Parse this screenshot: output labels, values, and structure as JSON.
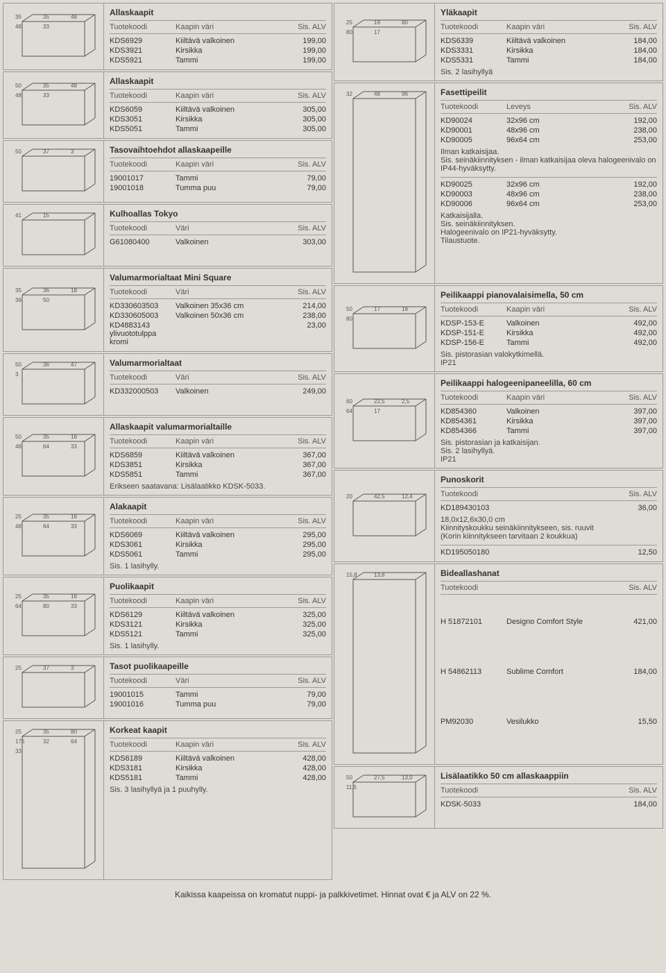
{
  "colors": {
    "background": "#dfdcd6",
    "border": "#999999",
    "text": "#333333",
    "text_muted": "#555555"
  },
  "typography": {
    "body_fontsize": 11,
    "title_fontsize": 12,
    "footer_fontsize": 12
  },
  "left_sections": [
    {
      "title": "Allaskaapit",
      "headers": [
        "Tuotekoodi",
        "Kaapin väri",
        "Sis. ALV"
      ],
      "rows": [
        [
          "KDS6929",
          "Kiiltävä valkoinen",
          "199,00"
        ],
        [
          "KDS3921",
          "Kirsikka",
          "199,00"
        ],
        [
          "KDS5921",
          "Tammi",
          "199,00"
        ]
      ],
      "dims": [
        "35",
        "35",
        "48",
        "48",
        "33"
      ]
    },
    {
      "title": "Allaskaapit",
      "headers": [
        "Tuotekoodi",
        "Kaapin väri",
        "Sis. ALV"
      ],
      "rows": [
        [
          "KDS6059",
          "Kiiltävä valkoinen",
          "305,00"
        ],
        [
          "KDS3051",
          "Kirsikka",
          "305,00"
        ],
        [
          "KDS5051",
          "Tammi",
          "305,00"
        ]
      ],
      "dims": [
        "50",
        "35",
        "48",
        "48",
        "33"
      ]
    },
    {
      "title": "Tasovaihtoehdot allaskaapeille",
      "headers": [
        "Tuotekoodi",
        "Kaapin väri",
        "Sis. ALV"
      ],
      "rows": [
        [
          "19001017",
          "Tammi",
          "79,00"
        ],
        [
          "19001018",
          "Tumma puu",
          "79,00"
        ]
      ],
      "dims": [
        "50",
        "37",
        "3"
      ]
    },
    {
      "title": "Kulhoallas Tokyo",
      "headers": [
        "Tuotekoodi",
        "Väri",
        "Sis. ALV"
      ],
      "rows": [
        [
          "G61080400",
          "Valkoinen",
          "303,00"
        ]
      ],
      "dims": [
        "41",
        "15"
      ]
    },
    {
      "title": "Valumarmorialtaat Mini Square",
      "headers": [
        "Tuotekoodi",
        "Väri",
        "Sis. ALV"
      ],
      "rows": [
        [
          "KD330603503",
          "Valkoinen 35x36 cm",
          "214,00"
        ],
        [
          "KD330605003",
          "Valkoinen 50x36 cm",
          "238,00"
        ],
        [
          "KD4883143 ylivuototulppa kromi",
          "",
          "23,00"
        ]
      ],
      "dims": [
        "35",
        "36",
        "18",
        "36",
        "50"
      ]
    },
    {
      "title": "Valumarmorialtaat",
      "headers": [
        "Tuotekoodi",
        "Väri",
        "Sis. ALV"
      ],
      "rows": [
        [
          "KD332000503",
          "Valkoinen",
          "249,00"
        ]
      ],
      "dims": [
        "50",
        "36",
        "47",
        "3"
      ]
    },
    {
      "title": "Allaskaapit valumarmorialtaille",
      "headers": [
        "Tuotekoodi",
        "Kaapin väri",
        "Sis. ALV"
      ],
      "rows": [
        [
          "KDS6859",
          "Kiiltävä valkoinen",
          "367,00"
        ],
        [
          "KDS3851",
          "Kirsikka",
          "367,00"
        ],
        [
          "KDS5851",
          "Tammi",
          "367,00"
        ]
      ],
      "note": "Erikseen saatavana: Lisälaatikko KDSK-5033.",
      "dims": [
        "50",
        "35",
        "16",
        "48",
        "64",
        "33"
      ]
    },
    {
      "title": "Alakaapit",
      "headers": [
        "Tuotekoodi",
        "Kaapin väri",
        "Sis. ALV"
      ],
      "rows": [
        [
          "KDS6069",
          "Kiiltävä valkoinen",
          "295,00"
        ],
        [
          "KDS3061",
          "Kirsikka",
          "295,00"
        ],
        [
          "KDS5061",
          "Tammi",
          "295,00"
        ]
      ],
      "note": "Sis. 1 lasihylly.",
      "dims": [
        "25",
        "35",
        "16",
        "48",
        "64",
        "33"
      ]
    },
    {
      "title": "Puolikaapit",
      "headers": [
        "Tuotekoodi",
        "Kaapin väri",
        "Sis. ALV"
      ],
      "rows": [
        [
          "KDS6129",
          "Kiiltävä valkoinen",
          "325,00"
        ],
        [
          "KDS3121",
          "Kirsikka",
          "325,00"
        ],
        [
          "KDS5121",
          "Tammi",
          "325,00"
        ]
      ],
      "note": "Sis. 1 lasihylly.",
      "dims": [
        "25",
        "35",
        "16",
        "64",
        "80",
        "33"
      ]
    },
    {
      "title": "Tasot puolikaapeille",
      "headers": [
        "Tuotekoodi",
        "Väri",
        "Sis. ALV"
      ],
      "rows": [
        [
          "19001015",
          "Tammi",
          "79,00"
        ],
        [
          "19001016",
          "Tumma puu",
          "79,00"
        ]
      ],
      "dims": [
        "25",
        "37",
        "3"
      ]
    },
    {
      "title": "Korkeat kaapit",
      "headers": [
        "Tuotekoodi",
        "Kaapin väri",
        "Sis. ALV"
      ],
      "rows": [
        [
          "KDS6189",
          "Kiiltävä valkoinen",
          "428,00"
        ],
        [
          "KDS3181",
          "Kirsikka",
          "428,00"
        ],
        [
          "KDS5181",
          "Tammi",
          "428,00"
        ]
      ],
      "note": "Sis. 3 lasihyllyä ja 1 puuhylly.",
      "dims": [
        "25",
        "35",
        "80",
        "176",
        "32",
        "64",
        "33"
      ]
    }
  ],
  "right_sections": [
    {
      "title": "Yläkaapit",
      "headers": [
        "Tuotekoodi",
        "Kaapin väri",
        "Sis. ALV"
      ],
      "rows": [
        [
          "KDS6339",
          "Kiiltävä valkoinen",
          "184,00"
        ],
        [
          "KDS3331",
          "Kirsikka",
          "184,00"
        ],
        [
          "KDS5331",
          "Tammi",
          "184,00"
        ]
      ],
      "note": "Sis. 2 lasihyllyä",
      "dims": [
        "25",
        "19",
        "80",
        "80",
        "17"
      ]
    },
    {
      "title": "Fasettipeilit",
      "headers": [
        "Tuotekoodi",
        "Leveys",
        "Sis. ALV"
      ],
      "rows": [
        [
          "KD90024",
          "32x96 cm",
          "192,00"
        ],
        [
          "KD90001",
          "48x96 cm",
          "238,00"
        ],
        [
          "KD90005",
          "96x64 cm",
          "253,00"
        ]
      ],
      "note": "Ilman katkaisijaa.\nSis. seinäkiinnityksen - ilman katkaisijaa oleva halogeenivalo on IP44-hyväksytty.",
      "dims": [
        "32",
        "48",
        "96"
      ],
      "extra_rows": [
        [
          "KD90025",
          "32x96 cm",
          "192,00"
        ],
        [
          "KD90003",
          "48x96 cm",
          "238,00"
        ],
        [
          "KD90006",
          "96x64 cm",
          "253,00"
        ]
      ],
      "extra_note": "Katkaisijalla.\nSis. seinäkiinnityksen.\nHalogeenivalo on IP21-hyväksytty.\nTilaustuote.",
      "extra_dims": [
        "96",
        "64"
      ]
    },
    {
      "title": "Peilikaappi pianovalaisimella, 50 cm",
      "headers": [
        "Tuotekoodi",
        "Kaapin väri",
        "Sis. ALV"
      ],
      "rows": [
        [
          "KDSP-153-E",
          "Valkoinen",
          "492,00"
        ],
        [
          "KDSP-151-E",
          "Kirsikka",
          "492,00"
        ],
        [
          "KDSP-156-E",
          "Tammi",
          "492,00"
        ]
      ],
      "note": "Sis. pistorasian valokytkimellä.\nIP21",
      "dims": [
        "50",
        "17",
        "18",
        "80"
      ]
    },
    {
      "title": "Peilikaappi halogeenipaneelilla, 60 cm",
      "headers": [
        "Tuotekoodi",
        "Kaapin väri",
        "Sis. ALV"
      ],
      "rows": [
        [
          "KD854360",
          "Valkoinen",
          "397,00"
        ],
        [
          "KD854361",
          "Kirsikka",
          "397,00"
        ],
        [
          "KD854366",
          "Tammi",
          "397,00"
        ]
      ],
      "note": "Sis. pistorasian ja katkaisijan.\nSis. 2 lasihyllyä.\nIP21",
      "dims": [
        "60",
        "22,5",
        "2,5",
        "64",
        "17"
      ]
    },
    {
      "title": "Punoskorit",
      "headers": [
        "Tuotekoodi",
        "",
        "Sis. ALV"
      ],
      "rows": [
        [
          "KD189430103",
          "",
          "36,00"
        ]
      ],
      "note": "18,0x12,6x30,0 cm\nKiinnityskoukku seinäkiinnitykseen, sis. ruuvit\n(Korin kiinnitykseen tarvitaan 2 koukkua)",
      "extra_rows": [
        [
          "KD195050180",
          "",
          "12,50"
        ]
      ],
      "dims": [
        "20",
        "42,5",
        "12,4"
      ]
    },
    {
      "title": "Bideallashanat",
      "headers": [
        "Tuotekoodi",
        "",
        "Sis. ALV"
      ],
      "rows": [
        [
          "H 51872101",
          "Designo Comfort Style",
          "421,00"
        ],
        [
          "H 54862113",
          "Sublime Comfort",
          "184,00"
        ],
        [
          "PM92030",
          "Vesilukko",
          "15,50"
        ]
      ],
      "dims": [
        "15,8",
        "13,8"
      ]
    },
    {
      "title": "Lisälaatikko 50 cm allaskaappiin",
      "headers": [
        "Tuotekoodi",
        "",
        "Sis. ALV"
      ],
      "rows": [
        [
          "KDSK-5033",
          "",
          "184,00"
        ]
      ],
      "dims": [
        "50",
        "27,5",
        "13,0",
        "11,5"
      ]
    }
  ],
  "footer": "Kaikissa kaapeissa on kromatut nuppi- ja palkkivetimet. Hinnat ovat € ja ALV on 22 %."
}
